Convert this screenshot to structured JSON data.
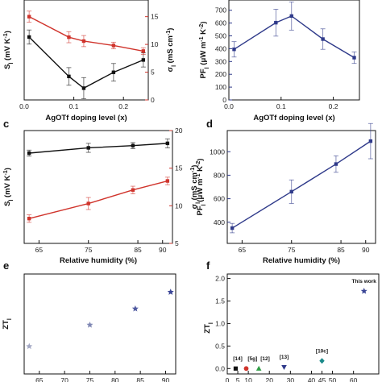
{
  "chart_data": [
    {
      "panel": "",
      "type": "line",
      "xlabel": "AgOTf doping level (x)",
      "ylabel_left": "S_l (mV K^-1)",
      "ylabel_right": "σ_l (mS cm^-1)",
      "xlim": [
        0.0,
        0.25
      ],
      "x_ticks": [
        "0.0",
        "0.1",
        "0.2"
      ],
      "ylim_left": [
        -27,
        -10
      ],
      "ylim_right": [
        0,
        18
      ],
      "right_ticks": [
        "0",
        "5",
        "10",
        "15"
      ],
      "left_ticks_visible": false,
      "series": [
        {
          "axis": "left",
          "color": "#111111",
          "x": [
            0.01,
            0.09,
            0.12,
            0.18,
            0.24
          ],
          "y": [
            -16.3,
            -23.0,
            -25.0,
            -22.3,
            -20.2
          ],
          "err": [
            1.2,
            1.5,
            1.8,
            1.5,
            1.2
          ]
        },
        {
          "axis": "right",
          "color": "#d0342c",
          "x": [
            0.01,
            0.09,
            0.12,
            0.18,
            0.24
          ],
          "y": [
            15.0,
            11.3,
            10.6,
            9.8,
            8.8
          ],
          "err": [
            1.0,
            1.0,
            1.0,
            0.6,
            0.6
          ]
        }
      ]
    },
    {
      "panel": "",
      "type": "line",
      "xlabel": "AgOTf doping level (x)",
      "ylabel": "PF_l (μW m^-1 K^-2)",
      "xlim": [
        0.0,
        0.25
      ],
      "x_ticks": [
        "0.0",
        "0.1",
        "0.2"
      ],
      "ylim": [
        0,
        780
      ],
      "y_ticks": [
        "0",
        "100",
        "200",
        "300",
        "400",
        "500",
        "600",
        "700"
      ],
      "series": [
        {
          "color": "#2f3a8a",
          "x": [
            0.01,
            0.09,
            0.12,
            0.18,
            0.24
          ],
          "y": [
            395,
            603,
            655,
            475,
            330
          ],
          "err": [
            60,
            105,
            110,
            80,
            45
          ]
        }
      ]
    },
    {
      "panel": "c",
      "type": "line",
      "xlabel": "Relative humidity (%)",
      "ylabel_left": "S_l (mV K^-1)",
      "ylabel_right": "σ_l (mS cm^-1)",
      "xlim": [
        62,
        92
      ],
      "x_ticks": [
        "65",
        "75",
        "85",
        "90"
      ],
      "x_tick_values": [
        65,
        75,
        85,
        90
      ],
      "ylim_right": [
        5,
        20
      ],
      "right_ticks": [
        "5",
        "10",
        "15",
        "20"
      ],
      "left_ticks_visible": false,
      "series": [
        {
          "axis": "right",
          "color": "#111111",
          "x": [
            63,
            75,
            84,
            91
          ],
          "y": [
            17.0,
            17.7,
            18.0,
            18.3
          ],
          "err": [
            0.4,
            0.6,
            0.4,
            0.6
          ]
        },
        {
          "axis": "right",
          "color": "#d0342c",
          "x": [
            63,
            75,
            84,
            91
          ],
          "y": [
            8.3,
            10.3,
            12.1,
            13.3
          ],
          "err": [
            0.5,
            0.8,
            0.5,
            0.5
          ]
        }
      ]
    },
    {
      "panel": "d",
      "type": "line",
      "xlabel": "Relative humidity (%)",
      "ylabel": "PF_l (μW m^-1 K^-2)",
      "xlim": [
        62,
        92
      ],
      "x_ticks": [
        "65",
        "75",
        "85",
        "90"
      ],
      "x_tick_values": [
        65,
        75,
        85,
        90
      ],
      "ylim": [
        220,
        1180
      ],
      "y_ticks": [
        "400",
        "600",
        "800",
        "1000"
      ],
      "series": [
        {
          "color": "#2f3a8a",
          "x": [
            63,
            75,
            84,
            91
          ],
          "y": [
            350,
            660,
            895,
            1090
          ],
          "err": [
            40,
            100,
            70,
            150
          ]
        }
      ]
    },
    {
      "panel": "e",
      "type": "scatter",
      "xlabel": "",
      "ylabel": "ZT_l",
      "xlim": [
        62,
        92
      ],
      "x_ticks": [
        "65",
        "70",
        "75",
        "80",
        "85",
        "90"
      ],
      "x_tick_values": [
        65,
        70,
        75,
        80,
        85,
        90
      ],
      "ylim": [
        0.0,
        2.1
      ],
      "series": [
        {
          "marker": "star",
          "x": [
            63,
            75,
            84,
            91
          ],
          "y": [
            0.58,
            1.03,
            1.37,
            1.72
          ],
          "colors": [
            "#a3a8c4",
            "#8088b4",
            "#505aa0",
            "#3a4596"
          ]
        }
      ]
    },
    {
      "panel": "f",
      "type": "scatter",
      "xlabel": "",
      "ylabel": "ZT_l",
      "xlim": [
        0,
        72
      ],
      "x_ticks": [
        "0",
        "5",
        "10",
        "20",
        "30",
        "40",
        "45",
        "50",
        "60"
      ],
      "x_tick_values": [
        0,
        5,
        10,
        20,
        30,
        40,
        45,
        50,
        60
      ],
      "ylim": [
        -0.12,
        2.1
      ],
      "y_ticks": [
        "0.0",
        "0.5",
        "1.0",
        "1.5",
        "2.0"
      ],
      "points": [
        {
          "x": 4,
          "y": 0.0,
          "shape": "square",
          "color": "#111111"
        },
        {
          "x": 9,
          "y": 0.0,
          "shape": "circle",
          "color": "#d0342c"
        },
        {
          "x": 15,
          "y": 0.0,
          "shape": "triangle-up",
          "color": "#2f9e44"
        },
        {
          "x": 27,
          "y": 0.03,
          "shape": "triangle-down",
          "color": "#2f3a8a"
        },
        {
          "x": 45,
          "y": 0.17,
          "shape": "diamond",
          "color": "#1a8a8a"
        },
        {
          "x": 65,
          "y": 1.72,
          "shape": "star",
          "color": "#3a4596"
        }
      ],
      "annotations": [
        {
          "text": "[14]",
          "x": 5,
          "y": 0.18
        },
        {
          "text": "[5g]",
          "x": 12,
          "y": 0.18
        },
        {
          "text": "[12]",
          "x": 18,
          "y": 0.18
        },
        {
          "text": "[13]",
          "x": 27,
          "y": 0.22
        },
        {
          "text": "[10c]",
          "x": 45,
          "y": 0.35
        },
        {
          "text": "This work",
          "x": 65,
          "y": 1.9
        }
      ]
    }
  ]
}
